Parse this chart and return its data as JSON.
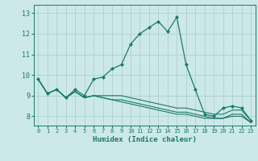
{
  "xlabel": "Humidex (Indice chaleur)",
  "bg_color": "#cce8e8",
  "line_color": "#1a7a6a",
  "grid_color": "#aacccc",
  "x_ticks": [
    0,
    1,
    2,
    3,
    4,
    5,
    6,
    7,
    8,
    9,
    10,
    11,
    12,
    13,
    14,
    15,
    16,
    17,
    18,
    19,
    20,
    21,
    22,
    23
  ],
  "y_ticks": [
    8,
    9,
    10,
    11,
    12,
    13
  ],
  "ylim": [
    7.55,
    13.4
  ],
  "xlim": [
    -0.5,
    23.5
  ],
  "series": [
    [
      9.8,
      9.1,
      9.3,
      8.9,
      9.3,
      9.0,
      9.8,
      9.9,
      10.3,
      10.5,
      11.5,
      12.0,
      12.3,
      12.6,
      12.1,
      12.8,
      10.5,
      9.3,
      8.1,
      8.0,
      8.4,
      8.5,
      8.4,
      7.8
    ],
    [
      9.8,
      9.1,
      9.3,
      8.9,
      9.2,
      8.9,
      9.0,
      9.0,
      9.0,
      9.0,
      8.9,
      8.8,
      8.7,
      8.6,
      8.5,
      8.4,
      8.4,
      8.3,
      8.2,
      8.1,
      8.1,
      8.3,
      8.3,
      7.8
    ],
    [
      9.8,
      9.1,
      9.3,
      8.9,
      9.2,
      8.9,
      9.0,
      8.9,
      8.8,
      8.8,
      8.7,
      8.6,
      8.5,
      8.4,
      8.3,
      8.2,
      8.2,
      8.1,
      8.0,
      7.9,
      7.9,
      8.1,
      8.1,
      7.7
    ],
    [
      9.8,
      9.1,
      9.3,
      8.9,
      9.2,
      8.9,
      9.0,
      8.9,
      8.8,
      8.7,
      8.6,
      8.5,
      8.4,
      8.3,
      8.2,
      8.1,
      8.1,
      8.0,
      7.9,
      7.9,
      7.9,
      8.0,
      8.0,
      7.7
    ]
  ]
}
